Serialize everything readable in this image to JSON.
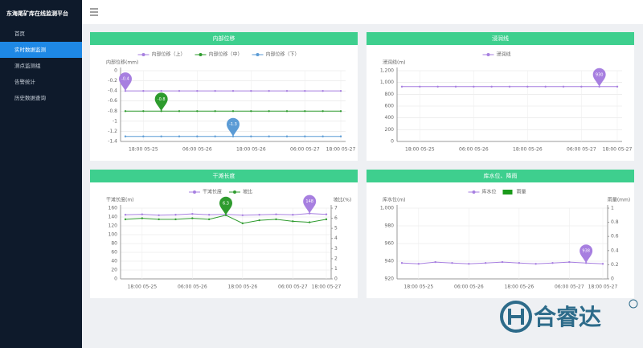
{
  "sidebar": {
    "title": "东海尾矿库在线监测平台",
    "menu": [
      "首页",
      "实时数据监测",
      "测点监测组",
      "告警统计",
      "历史数据查询"
    ]
  },
  "watermark": "合睿达",
  "chart_data": [
    {
      "type": "line",
      "title": "内部位移",
      "ylabel": "内部位移(mm)",
      "ylim": [
        -1.4,
        0
      ],
      "yticks": [
        0,
        -0.2,
        -0.4,
        -0.6,
        -0.8,
        -1,
        -1.2,
        -1.4
      ],
      "grid": true,
      "categories": [
        null,
        "18:00 05-25",
        null,
        null,
        "06:00 05-26",
        null,
        null,
        "18:00 05-26",
        null,
        null,
        "06:00 05-27",
        null,
        "18:00 05-27"
      ],
      "series": [
        {
          "name": "内部位移（上）",
          "color": "#a77fe0",
          "values": [
            -0.4,
            -0.4,
            -0.4,
            -0.4,
            -0.4,
            -0.4,
            -0.4,
            -0.4,
            -0.4,
            -0.4,
            -0.4,
            -0.4,
            -0.4
          ],
          "value_labels": [
            "-0.4",
            null,
            null,
            null,
            null,
            null,
            null,
            null,
            null,
            null,
            null,
            null,
            null
          ]
        },
        {
          "name": "内部位移（中）",
          "color": "#2e9b2e",
          "values": [
            -0.8,
            -0.8,
            -0.8,
            -0.8,
            -0.8,
            -0.8,
            -0.8,
            -0.8,
            -0.8,
            -0.8,
            -0.8,
            -0.8,
            -0.8
          ],
          "value_labels": [
            null,
            null,
            "-0.8",
            null,
            null,
            null,
            null,
            null,
            null,
            null,
            null,
            null,
            null
          ]
        },
        {
          "name": "内部位移（下）",
          "color": "#5b9bd5",
          "values": [
            -1.3,
            -1.3,
            -1.3,
            -1.3,
            -1.3,
            -1.3,
            -1.3,
            -1.3,
            -1.3,
            -1.3,
            -1.3,
            -1.3,
            -1.3
          ],
          "value_labels": [
            null,
            null,
            null,
            null,
            null,
            null,
            "-1.3",
            null,
            null,
            null,
            null,
            null,
            null
          ]
        }
      ]
    },
    {
      "type": "line",
      "title": "浸润线",
      "ylabel": "浸润线(m)",
      "ylim": [
        0,
        1200
      ],
      "yticks": [
        0,
        200,
        400,
        600,
        800,
        {
          "value": 1000,
          "label": "1,000"
        },
        {
          "value": 1200,
          "label": "1,200"
        }
      ],
      "grid": true,
      "categories": [
        null,
        "18:00 05-25",
        null,
        null,
        "06:00 05-26",
        null,
        null,
        "18:00 05-26",
        null,
        null,
        "06:00 05-27",
        null,
        "18:00 05-27"
      ],
      "series": [
        {
          "name": "浸润线",
          "color": "#a77fe0",
          "values": [
            930,
            930,
            930,
            930,
            930,
            930,
            930,
            930,
            930,
            930,
            930,
            930,
            930
          ],
          "value_labels": [
            null,
            null,
            null,
            null,
            null,
            null,
            null,
            null,
            null,
            null,
            null,
            "930",
            null
          ]
        }
      ]
    },
    {
      "type": "line",
      "title": "干滩长度",
      "ylabel": "干滩长度(m)",
      "y2label": "坡比(%)",
      "ylim": [
        0,
        160
      ],
      "yticks": [
        0,
        20,
        40,
        60,
        80,
        100,
        120,
        140,
        160
      ],
      "y2lim": [
        0,
        7
      ],
      "y2ticks": [
        0,
        1,
        2,
        3,
        4,
        5,
        6,
        7
      ],
      "grid": true,
      "categories": [
        null,
        "18:00 05-25",
        null,
        null,
        "06:00 05-26",
        null,
        null,
        "18:00 05-26",
        null,
        null,
        "06:00 05-27",
        null,
        "18:00 05-27"
      ],
      "series": [
        {
          "name": "干滩长度",
          "color": "#a77fe0",
          "values": [
            145,
            146,
            144,
            145,
            147,
            145,
            146,
            144,
            145,
            146,
            145,
            148,
            146
          ],
          "value_labels": [
            null,
            null,
            null,
            null,
            null,
            null,
            null,
            null,
            null,
            null,
            null,
            "148",
            null
          ]
        },
        {
          "name": "坡比",
          "color": "#2e9b2e",
          "axis": "y2",
          "values": [
            5.9,
            6,
            5.9,
            5.9,
            6,
            5.9,
            6.3,
            5.5,
            5.8,
            5.9,
            5.7,
            5.6,
            5.9
          ],
          "value_labels": [
            null,
            null,
            null,
            null,
            null,
            null,
            "6.3",
            null,
            null,
            null,
            null,
            null,
            null
          ]
        }
      ]
    },
    {
      "type": "line",
      "title": "库水位、降雨",
      "ylabel": "库水位(m)",
      "y2label": "雨量(mm)",
      "ylim": [
        920,
        1000
      ],
      "yticks": [
        920,
        940,
        960,
        980,
        {
          "value": 1000,
          "label": "1,000"
        }
      ],
      "y2lim": [
        0,
        1
      ],
      "y2ticks": [
        0,
        0.2,
        0.4,
        0.6,
        0.8,
        1
      ],
      "grid": true,
      "categories": [
        null,
        "18:00 05-25",
        null,
        null,
        "06:00 05-26",
        null,
        null,
        "18:00 05-26",
        null,
        null,
        "06:00 05-27",
        null,
        "18:00 05-27"
      ],
      "series": [
        {
          "name": "库水位",
          "color": "#a77fe0",
          "values": [
            938,
            937,
            939,
            938,
            937,
            938,
            939,
            938,
            937,
            938,
            939,
            938,
            937
          ],
          "value_labels": [
            null,
            null,
            null,
            null,
            null,
            null,
            null,
            null,
            null,
            null,
            null,
            "938",
            null
          ]
        },
        {
          "name": "雨量",
          "color": "#1a9a1a",
          "type": "bar",
          "axis": "y2",
          "values": [
            0,
            0,
            0,
            0,
            0,
            0,
            0,
            0,
            0,
            0,
            0,
            0,
            0
          ]
        }
      ]
    }
  ]
}
